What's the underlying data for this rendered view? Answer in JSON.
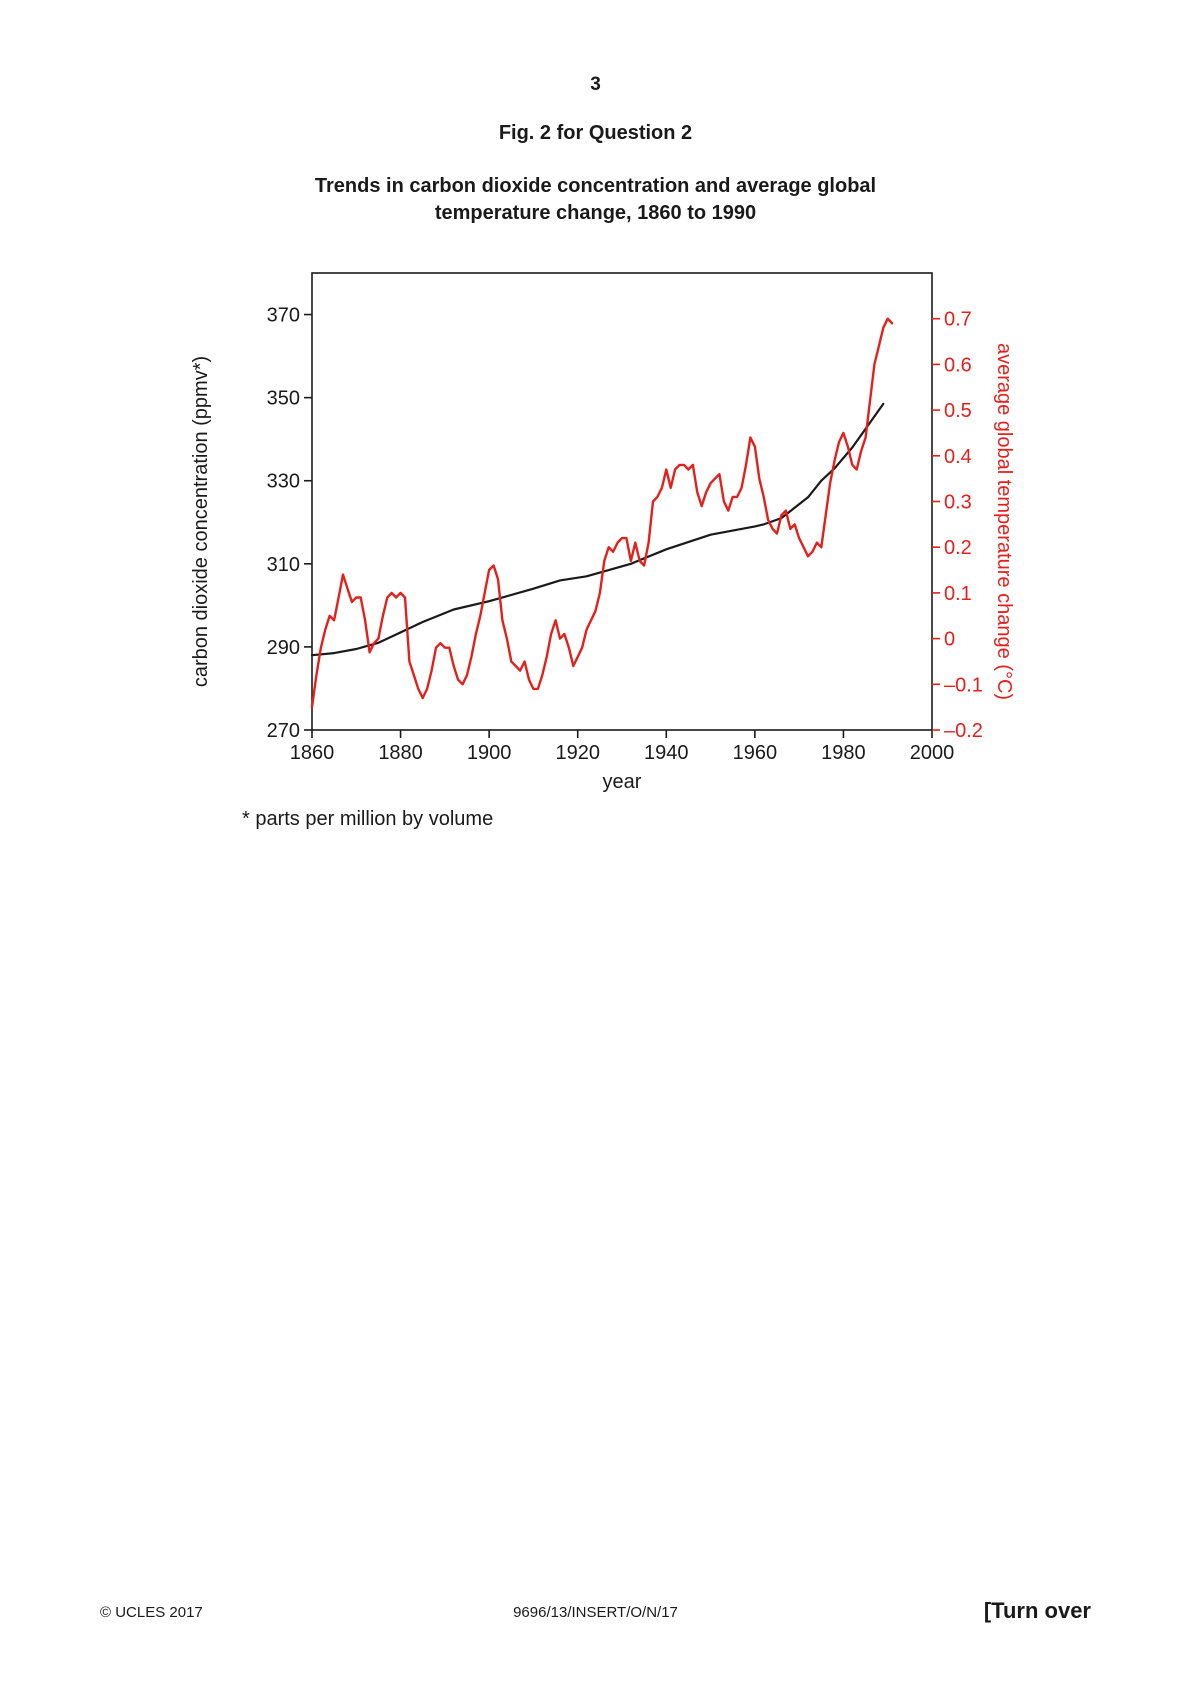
{
  "page": {
    "number": "3",
    "figure_label": "Fig. 2 for Question 2",
    "title_line1": "Trends in carbon dioxide concentration and average global",
    "title_line2": "temperature change, 1860 to 1990",
    "footnote": "* parts per million by volume",
    "footer_left": "© UCLES 2017",
    "footer_center": "9696/13/INSERT/O/N/17",
    "footer_right": "[Turn over"
  },
  "chart_data": {
    "type": "line",
    "title": "Trends in carbon dioxide concentration and average global temperature change, 1860 to 1990",
    "xlabel": "year",
    "ylabel_left": "carbon dioxide concentration (ppmv*)",
    "ylabel_right": "average global temperature change (°C)",
    "xlim": [
      1860,
      2000
    ],
    "ylim_left": [
      270,
      380
    ],
    "ylim_right": [
      -0.2,
      0.8
    ],
    "x_ticks": [
      "1860",
      "1880",
      "1900",
      "1920",
      "1940",
      "1960",
      "1980",
      "2000"
    ],
    "y_left_ticks": [
      "270",
      "290",
      "310",
      "330",
      "350",
      "370"
    ],
    "y_right_ticks": [
      "–0.2",
      "–0.1",
      "0",
      "0.1",
      "0.2",
      "0.3",
      "0.4",
      "0.5",
      "0.6",
      "0.7"
    ],
    "colors": {
      "co2": "#1a1a1a",
      "temperature": "#e3211c"
    },
    "series": [
      {
        "axis": "left",
        "color": "#1a1a1a",
        "points": [
          [
            1860,
            288
          ],
          [
            1865,
            288.5
          ],
          [
            1870,
            289.5
          ],
          [
            1875,
            291
          ],
          [
            1880,
            293.5
          ],
          [
            1885,
            296
          ],
          [
            1892,
            299
          ],
          [
            1900,
            301
          ],
          [
            1910,
            304
          ],
          [
            1916,
            306
          ],
          [
            1922,
            307
          ],
          [
            1932,
            310
          ],
          [
            1940,
            313.5
          ],
          [
            1950,
            317
          ],
          [
            1960,
            319
          ],
          [
            1962,
            319.5
          ],
          [
            1966,
            321
          ],
          [
            1972,
            326
          ],
          [
            1975,
            330
          ],
          [
            1978,
            333
          ],
          [
            1982,
            338
          ],
          [
            1986,
            344
          ],
          [
            1989,
            348.5
          ]
        ]
      },
      {
        "axis": "right",
        "color": "#e3211c",
        "points": [
          [
            1860,
            -0.15
          ],
          [
            1861,
            -0.08
          ],
          [
            1862,
            -0.02
          ],
          [
            1863,
            0.02
          ],
          [
            1864,
            0.05
          ],
          [
            1865,
            0.04
          ],
          [
            1866,
            0.09
          ],
          [
            1867,
            0.14
          ],
          [
            1868,
            0.11
          ],
          [
            1869,
            0.08
          ],
          [
            1870,
            0.09
          ],
          [
            1871,
            0.09
          ],
          [
            1872,
            0.04
          ],
          [
            1873,
            -0.03
          ],
          [
            1874,
            -0.01
          ],
          [
            1875,
            0.0
          ],
          [
            1876,
            0.05
          ],
          [
            1877,
            0.09
          ],
          [
            1878,
            0.1
          ],
          [
            1879,
            0.09
          ],
          [
            1880,
            0.1
          ],
          [
            1881,
            0.09
          ],
          [
            1882,
            -0.05
          ],
          [
            1883,
            -0.08
          ],
          [
            1884,
            -0.11
          ],
          [
            1885,
            -0.13
          ],
          [
            1886,
            -0.11
          ],
          [
            1887,
            -0.07
          ],
          [
            1888,
            -0.02
          ],
          [
            1889,
            -0.01
          ],
          [
            1890,
            -0.02
          ],
          [
            1891,
            -0.02
          ],
          [
            1892,
            -0.06
          ],
          [
            1893,
            -0.09
          ],
          [
            1894,
            -0.1
          ],
          [
            1895,
            -0.08
          ],
          [
            1896,
            -0.04
          ],
          [
            1897,
            0.01
          ],
          [
            1898,
            0.05
          ],
          [
            1899,
            0.1
          ],
          [
            1900,
            0.15
          ],
          [
            1901,
            0.16
          ],
          [
            1902,
            0.13
          ],
          [
            1903,
            0.04
          ],
          [
            1904,
            0.0
          ],
          [
            1905,
            -0.05
          ],
          [
            1906,
            -0.06
          ],
          [
            1907,
            -0.07
          ],
          [
            1908,
            -0.05
          ],
          [
            1909,
            -0.09
          ],
          [
            1910,
            -0.11
          ],
          [
            1911,
            -0.11
          ],
          [
            1912,
            -0.08
          ],
          [
            1913,
            -0.04
          ],
          [
            1914,
            0.01
          ],
          [
            1915,
            0.04
          ],
          [
            1916,
            0.0
          ],
          [
            1917,
            0.01
          ],
          [
            1918,
            -0.02
          ],
          [
            1919,
            -0.06
          ],
          [
            1920,
            -0.04
          ],
          [
            1921,
            -0.02
          ],
          [
            1922,
            0.02
          ],
          [
            1923,
            0.04
          ],
          [
            1924,
            0.06
          ],
          [
            1925,
            0.1
          ],
          [
            1926,
            0.17
          ],
          [
            1927,
            0.2
          ],
          [
            1928,
            0.19
          ],
          [
            1929,
            0.21
          ],
          [
            1930,
            0.22
          ],
          [
            1931,
            0.22
          ],
          [
            1932,
            0.17
          ],
          [
            1933,
            0.21
          ],
          [
            1934,
            0.17
          ],
          [
            1935,
            0.16
          ],
          [
            1936,
            0.21
          ],
          [
            1937,
            0.3
          ],
          [
            1938,
            0.31
          ],
          [
            1939,
            0.33
          ],
          [
            1940,
            0.37
          ],
          [
            1941,
            0.33
          ],
          [
            1942,
            0.37
          ],
          [
            1943,
            0.38
          ],
          [
            1944,
            0.38
          ],
          [
            1945,
            0.37
          ],
          [
            1946,
            0.38
          ],
          [
            1947,
            0.32
          ],
          [
            1948,
            0.29
          ],
          [
            1949,
            0.32
          ],
          [
            1950,
            0.34
          ],
          [
            1951,
            0.35
          ],
          [
            1952,
            0.36
          ],
          [
            1953,
            0.3
          ],
          [
            1954,
            0.28
          ],
          [
            1955,
            0.31
          ],
          [
            1956,
            0.31
          ],
          [
            1957,
            0.33
          ],
          [
            1958,
            0.38
          ],
          [
            1959,
            0.44
          ],
          [
            1960,
            0.42
          ],
          [
            1961,
            0.35
          ],
          [
            1962,
            0.31
          ],
          [
            1963,
            0.26
          ],
          [
            1964,
            0.24
          ],
          [
            1965,
            0.23
          ],
          [
            1966,
            0.27
          ],
          [
            1967,
            0.28
          ],
          [
            1968,
            0.24
          ],
          [
            1969,
            0.25
          ],
          [
            1970,
            0.22
          ],
          [
            1971,
            0.2
          ],
          [
            1972,
            0.18
          ],
          [
            1973,
            0.19
          ],
          [
            1974,
            0.21
          ],
          [
            1975,
            0.2
          ],
          [
            1976,
            0.27
          ],
          [
            1977,
            0.34
          ],
          [
            1978,
            0.39
          ],
          [
            1979,
            0.43
          ],
          [
            1980,
            0.45
          ],
          [
            1981,
            0.42
          ],
          [
            1982,
            0.38
          ],
          [
            1983,
            0.37
          ],
          [
            1984,
            0.41
          ],
          [
            1985,
            0.44
          ],
          [
            1986,
            0.52
          ],
          [
            1987,
            0.6
          ],
          [
            1988,
            0.64
          ],
          [
            1989,
            0.68
          ],
          [
            1990,
            0.7
          ],
          [
            1991,
            0.69
          ]
        ]
      }
    ]
  }
}
